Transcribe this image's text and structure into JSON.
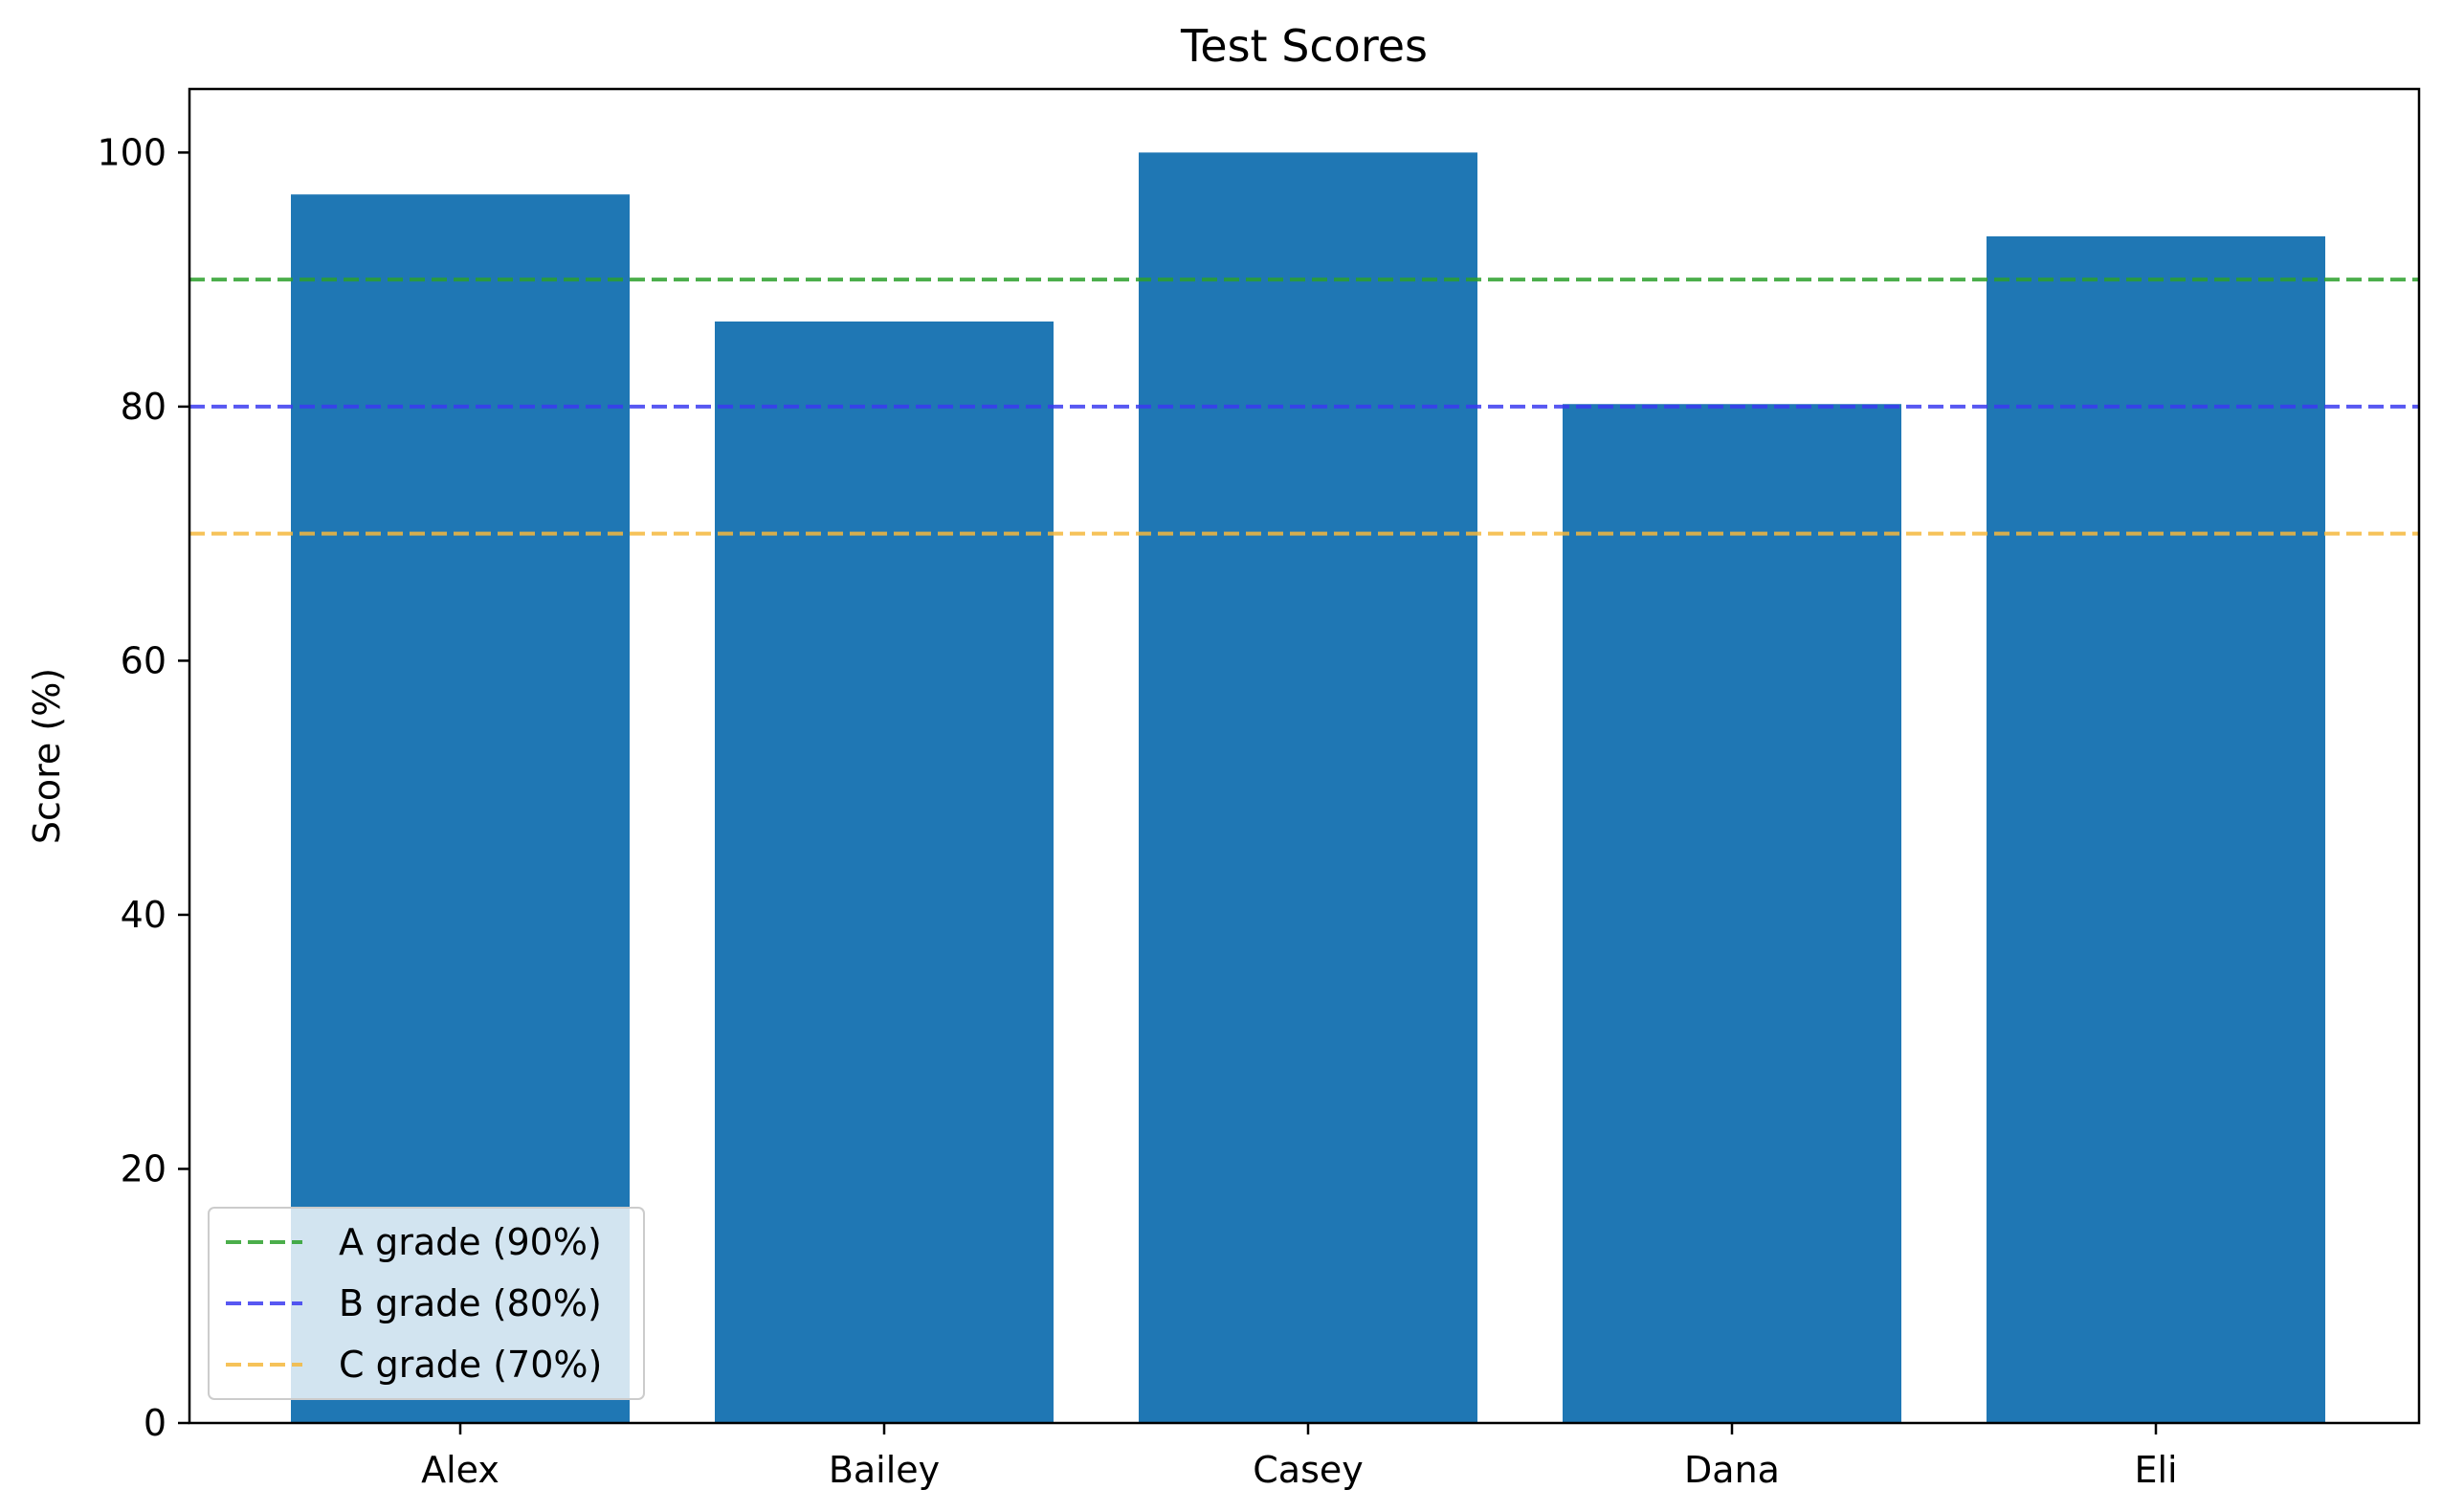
{
  "chart_data": {
    "type": "bar",
    "title": "Test Scores",
    "xlabel": "",
    "ylabel": "Score (%)",
    "categories": [
      "Alex",
      "Bailey",
      "Casey",
      "Dana",
      "Eli"
    ],
    "values": [
      96.7,
      86.7,
      100,
      80.2,
      93.4
    ],
    "ylim": [
      0,
      105
    ],
    "yticks": [
      0,
      20,
      40,
      60,
      80,
      100
    ],
    "bar_color": "#1f77b4",
    "grid": false,
    "reference_lines": [
      {
        "label": "A grade (90%)",
        "y": 90,
        "color": "#2ca02c",
        "style": "dashed"
      },
      {
        "label": "B grade (80%)",
        "y": 80,
        "color": "#3b3bf0",
        "style": "dashed"
      },
      {
        "label": "C grade (70%)",
        "y": 70,
        "color": "#f5b83d",
        "style": "dashed"
      }
    ],
    "legend_position": "lower-left"
  }
}
